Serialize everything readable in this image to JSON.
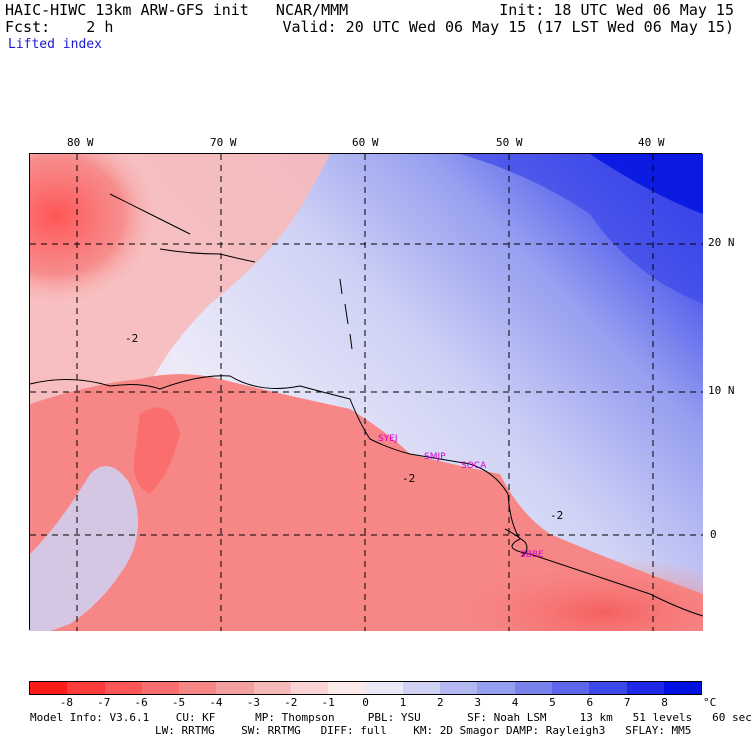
{
  "header": {
    "line1_left": "HAIC-HIWC 13km ARW-GFS init   NCAR/MMM",
    "line1_right": "Init: 18 UTC Wed 06 May 15",
    "line2_left": "Fcst:    2 h",
    "line2_right": "Valid: 20 UTC Wed 06 May 15 (17 LST Wed 06 May 15)",
    "field": "Lifted index"
  },
  "map": {
    "lon_labels": [
      "80 W",
      "70 W",
      "60 W",
      "50 W",
      "40 W"
    ],
    "lat_labels": [
      "20 N",
      "10 N",
      "0"
    ],
    "contour_labels": [
      "-2",
      "-2",
      "-2"
    ],
    "stations": [
      "SYEJ",
      "SMJP",
      "SOCA",
      "SBBE"
    ]
  },
  "colorbar": {
    "values": [
      "-8",
      "-7",
      "-6",
      "-5",
      "-4",
      "-3",
      "-2",
      "-1",
      "0",
      "1",
      "2",
      "3",
      "4",
      "5",
      "6",
      "7",
      "8"
    ],
    "unit": "°C",
    "colors": [
      "#ff1a1a",
      "#ff3c3c",
      "#ff5656",
      "#fa6e6e",
      "#f78787",
      "#f5a0a0",
      "#f7baba",
      "#fad4d4",
      "#fceaea",
      "#eaeaf8",
      "#cfd2f5",
      "#b3b8f2",
      "#969ef0",
      "#7a82ee",
      "#5c66ec",
      "#3d48ea",
      "#1e2ae8",
      "#0010e0"
    ]
  },
  "model_info": {
    "line1": "Model Info: V3.6.1    CU: KF      MP: Thompson     PBL: YSU       SF: Noah LSM     13 km   51 levels   60 sec",
    "line2": "LW: RRTMG    SW: RRTMG   DIFF: full    KM: 2D Smagor DAMP: Rayleigh3   SFLAY: MM5"
  }
}
